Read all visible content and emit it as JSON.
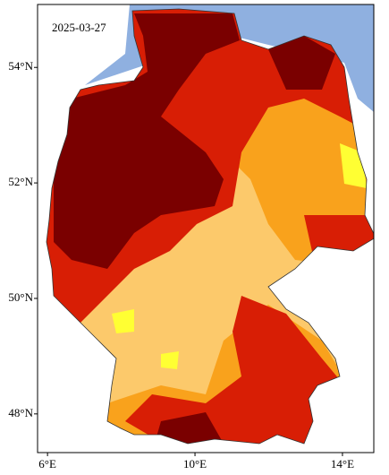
{
  "map": {
    "date": "2025-03-27",
    "lat_range": [
      55.09,
      47.33
    ],
    "lon_range": [
      5.73,
      14.85
    ],
    "lat_ticks": [
      {
        "value": 54,
        "label": "54°N"
      },
      {
        "value": 52,
        "label": "52°N"
      },
      {
        "value": 50,
        "label": "50°N"
      },
      {
        "value": 48,
        "label": "48°N"
      }
    ],
    "lon_ticks": [
      {
        "value": 6,
        "label": "6°E"
      },
      {
        "value": 10,
        "label": "10°E"
      },
      {
        "value": 14,
        "label": "14°E"
      }
    ]
  }
}
